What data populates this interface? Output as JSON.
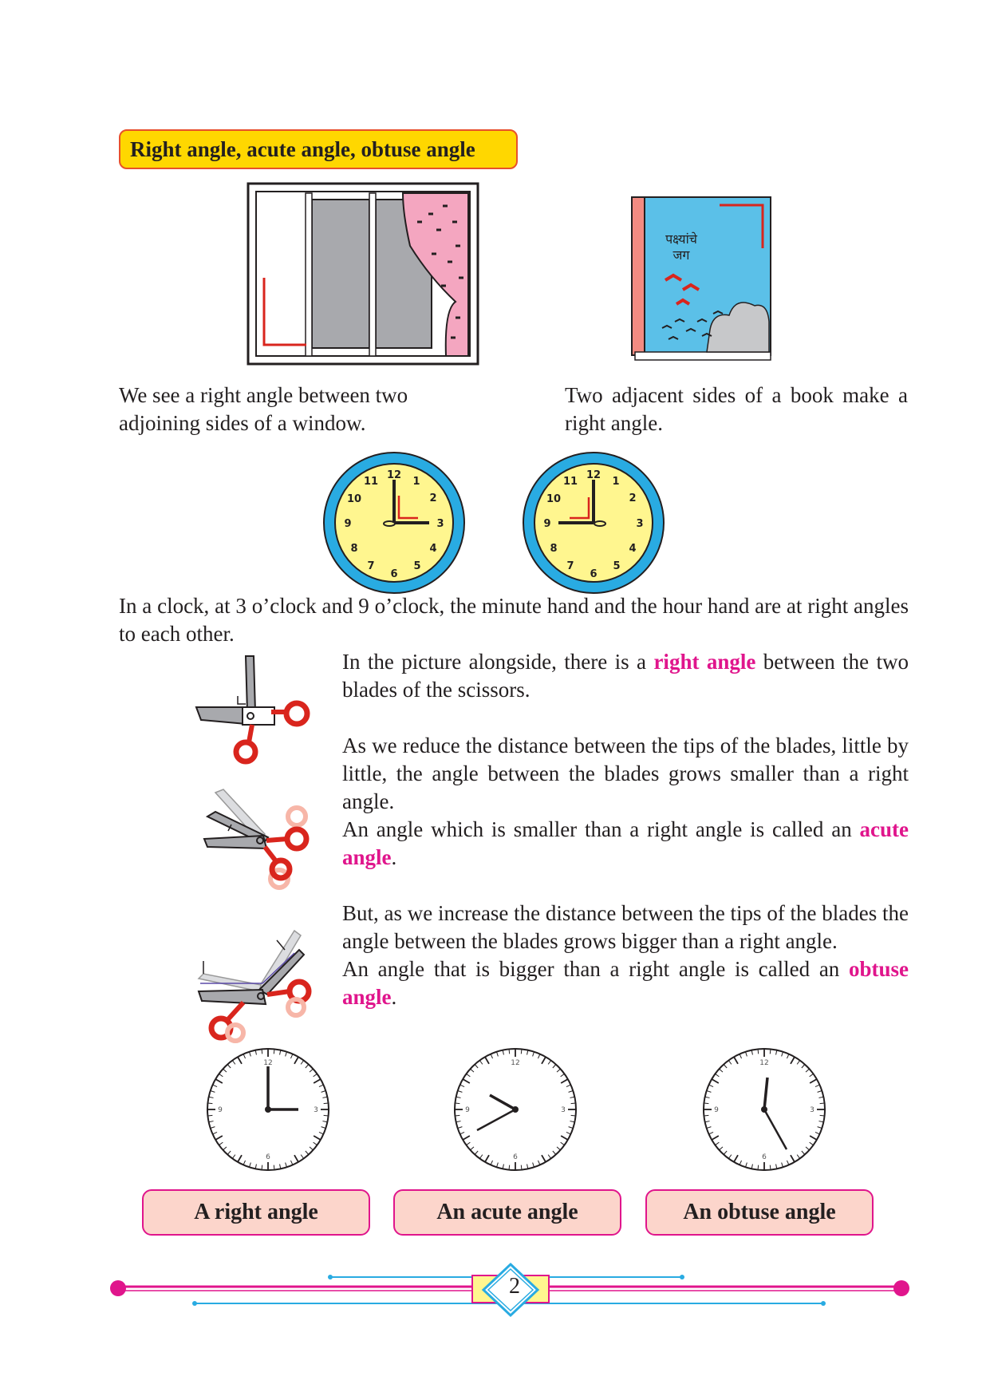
{
  "section": {
    "heading": "Right angle, acute angle, obtuse angle"
  },
  "illustrations": {
    "book_title_line1": "पक्ष्यांचे",
    "book_title_line2": "जग"
  },
  "captions": {
    "window": "We see a right angle between two adjoining sides of a window.",
    "book": "Two adjacent sides of a book make a right angle.",
    "clock": "In a clock, at 3 o’clock and 9 o’clock, the minute hand and the hour hand are at right angles to each other."
  },
  "scissors_text": {
    "p1_before": "In the picture alongside, there is a ",
    "p1_term": "right angle",
    "p1_after": " between the two blades of the scissors.",
    "p2": "As we reduce the distance between the tips of the blades, little by little, the angle between the blades grows smaller than a right angle.",
    "p3_before": "An angle which is smaller than a right angle is called an ",
    "p3_term": "acute angle",
    "p3_after": ".",
    "p4": "But, as we increase the distance between the tips of the blades the angle between the blades grows bigger than a right angle.",
    "p5_before": "An angle that is bigger than a right angle is called an ",
    "p5_term": "obtuse angle",
    "p5_after": "."
  },
  "clock_numerals": [
    "12",
    "3",
    "6",
    "9"
  ],
  "angle_labels": {
    "right": "A right angle",
    "acute": "An acute angle",
    "obtuse": "An obtuse angle"
  },
  "footer": {
    "page_number": "2"
  },
  "colors": {
    "heading_fill": "#ffd700",
    "heading_border": "#e8502a",
    "highlight": "#e0158c",
    "label_fill": "#fcd5cb",
    "footer_magenta": "#e0158c",
    "footer_cyan": "#29abe2"
  }
}
